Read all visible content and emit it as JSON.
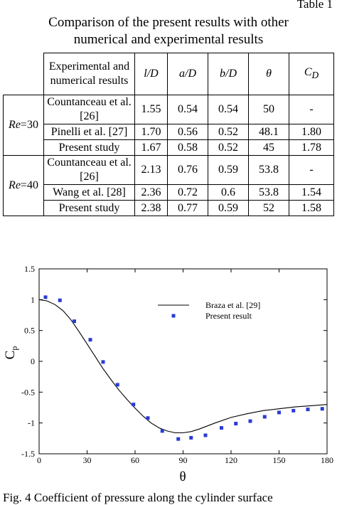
{
  "table": {
    "label": "Table 1",
    "caption_line1": "Comparison of the present results with other",
    "caption_line2": "numerical and experimental results",
    "col_method": "Experimental and numerical results",
    "col_l": "l/D",
    "col_a": "a/D",
    "col_b": "b/D",
    "col_theta": "θ",
    "col_cd": "C",
    "col_cd_sub": "D",
    "groups": [
      {
        "re_label": "Re",
        "re_value": "=30",
        "rows": [
          {
            "method": "Countanceau et al. [26]",
            "l": "1.55",
            "a": "0.54",
            "b": "0.54",
            "theta": "50",
            "cd": "-"
          },
          {
            "method": "Pinelli et al. [27]",
            "l": "1.70",
            "a": "0.56",
            "b": "0.52",
            "theta": "48.1",
            "cd": "1.80"
          },
          {
            "method": "Present study",
            "l": "1.67",
            "a": "0.58",
            "b": "0.52",
            "theta": "45",
            "cd": "1.78"
          }
        ]
      },
      {
        "re_label": "Re",
        "re_value": "=40",
        "rows": [
          {
            "method": "Countanceau et al. [26]",
            "l": "2.13",
            "a": "0.76",
            "b": "0.59",
            "theta": "53.8",
            "cd": "-"
          },
          {
            "method": "Wang et al. [28]",
            "l": "2.36",
            "a": "0.72",
            "b": "0.6",
            "theta": "53.8",
            "cd": "1.54"
          },
          {
            "method": "Present study",
            "l": "2.38",
            "a": "0.77",
            "b": "0.59",
            "theta": "52",
            "cd": "1.58"
          }
        ]
      }
    ]
  },
  "chart_data": {
    "type": "line",
    "xlabel": "θ",
    "ylabel": "C",
    "ylabel_sub": "p",
    "xlim": [
      0,
      180
    ],
    "ylim": [
      -1.5,
      1.5
    ],
    "xticks": [
      0,
      30,
      60,
      90,
      120,
      150,
      180
    ],
    "yticks": [
      -1.5,
      -1,
      -0.5,
      0,
      0.5,
      1,
      1.5
    ],
    "ytick_labels": [
      "-1.5",
      "-1",
      "-0.5",
      "0",
      "0.5",
      "1",
      "1.5"
    ],
    "grid": false,
    "legend_position": "top-right",
    "series": [
      {
        "name": "Braza et al. [29]",
        "style": "line",
        "color": "#000000",
        "x": [
          0,
          5,
          10,
          15,
          20,
          25,
          30,
          35,
          40,
          45,
          50,
          55,
          60,
          65,
          70,
          75,
          80,
          85,
          90,
          95,
          100,
          110,
          120,
          130,
          140,
          150,
          160,
          170,
          180
        ],
        "y": [
          1.0,
          0.98,
          0.92,
          0.82,
          0.67,
          0.48,
          0.28,
          0.08,
          -0.12,
          -0.3,
          -0.47,
          -0.62,
          -0.76,
          -0.89,
          -1.0,
          -1.08,
          -1.13,
          -1.16,
          -1.16,
          -1.14,
          -1.1,
          -1.0,
          -0.91,
          -0.85,
          -0.8,
          -0.77,
          -0.74,
          -0.72,
          -0.7
        ]
      },
      {
        "name": "Present result",
        "style": "scatter",
        "color": "#2a3bd6",
        "x": [
          4,
          13,
          22,
          32,
          40,
          49,
          59,
          68,
          77,
          87,
          95,
          104,
          114,
          123,
          132,
          141,
          150,
          159,
          168,
          177
        ],
        "y": [
          1.04,
          0.99,
          0.65,
          0.35,
          -0.01,
          -0.38,
          -0.7,
          -0.92,
          -1.13,
          -1.26,
          -1.24,
          -1.2,
          -1.08,
          -1.01,
          -0.97,
          -0.9,
          -0.83,
          -0.8,
          -0.78,
          -0.77
        ]
      }
    ]
  },
  "figure": {
    "caption": "Fig. 4 Coefficient of pressure along the cylinder surface"
  }
}
